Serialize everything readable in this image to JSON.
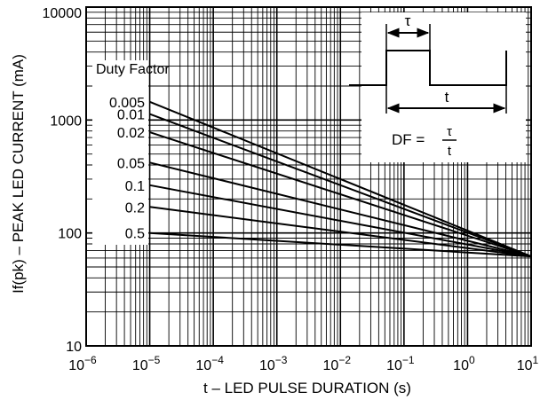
{
  "chart_data": {
    "type": "line",
    "xlabel": "t – LED PULSE DURATION (s)",
    "ylabel": "If(pk) – PEAK LED CURRENT (mA)",
    "x_scale": "log",
    "y_scale": "log",
    "xlim": [
      1e-06,
      10
    ],
    "ylim": [
      10,
      10000
    ],
    "grid": true,
    "x_ticks": [
      {
        "base": "10",
        "exp": "−6"
      },
      {
        "base": "10",
        "exp": "−5"
      },
      {
        "base": "10",
        "exp": "−4"
      },
      {
        "base": "10",
        "exp": "−3"
      },
      {
        "base": "10",
        "exp": "−2"
      },
      {
        "base": "10",
        "exp": "−1"
      },
      {
        "base": "10",
        "exp": "0"
      },
      {
        "base": "10",
        "exp": "1"
      }
    ],
    "y_ticks": [
      "10",
      "100",
      "1000",
      "10000"
    ],
    "legend_title": "Duty Factor",
    "series": [
      {
        "name": "0.005",
        "x": [
          1e-05,
          10
        ],
        "y": [
          1450,
          62
        ]
      },
      {
        "name": "0.01",
        "x": [
          1e-05,
          10
        ],
        "y": [
          1130,
          62
        ]
      },
      {
        "name": "0.02",
        "x": [
          1e-05,
          10
        ],
        "y": [
          780,
          62
        ]
      },
      {
        "name": "0.05",
        "x": [
          1e-05,
          10
        ],
        "y": [
          420,
          62
        ]
      },
      {
        "name": "0.1",
        "x": [
          1e-05,
          10
        ],
        "y": [
          265,
          62
        ]
      },
      {
        "name": "0.2",
        "x": [
          1e-05,
          10
        ],
        "y": [
          170,
          62
        ]
      },
      {
        "name": "0.5",
        "x": [
          1e-05,
          10
        ],
        "y": [
          100,
          62
        ]
      }
    ],
    "inset": {
      "tau": "τ",
      "t": "t",
      "formula_lhs": "DF =",
      "formula_num": "τ",
      "formula_den": "t"
    }
  }
}
